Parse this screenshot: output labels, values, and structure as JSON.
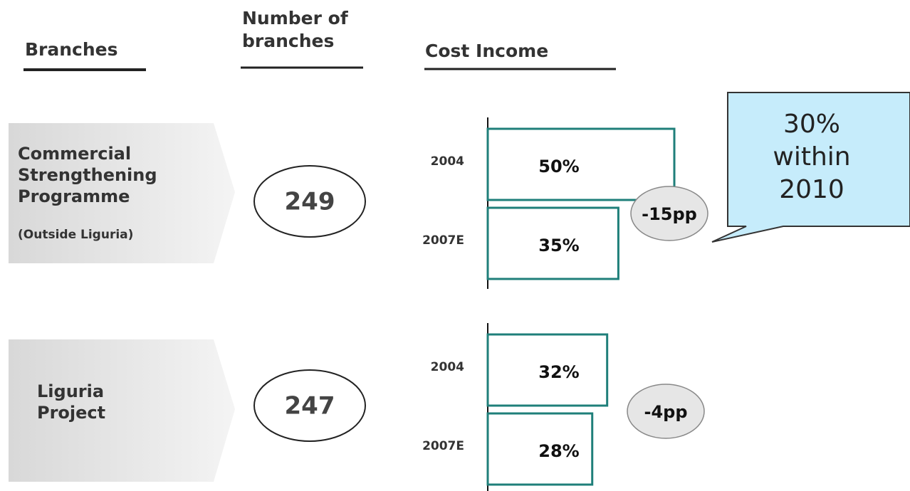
{
  "headers": [
    "Branches",
    "Number of branches",
    "Cost Income"
  ],
  "rows": [
    {
      "label": "Commercial Strengthening Programme",
      "sublabel": "(Outside Liguria)",
      "branches": 249,
      "delta": "-15pp"
    },
    {
      "label": "Liguria Project",
      "branches": 247,
      "delta": "-4pp"
    }
  ],
  "callout": "30% within 2010",
  "chart_data": [
    {
      "type": "bar",
      "orientation": "horizontal",
      "categories": [
        "2004",
        "2007E"
      ],
      "values": [
        50,
        35
      ],
      "value_labels": [
        "50%",
        "35%"
      ],
      "color": "#1f7f7a"
    },
    {
      "type": "bar",
      "orientation": "horizontal",
      "categories": [
        "2004",
        "2007E"
      ],
      "values": [
        32,
        28
      ],
      "value_labels": [
        "32%",
        "28%"
      ],
      "color": "#1f7f7a"
    }
  ]
}
